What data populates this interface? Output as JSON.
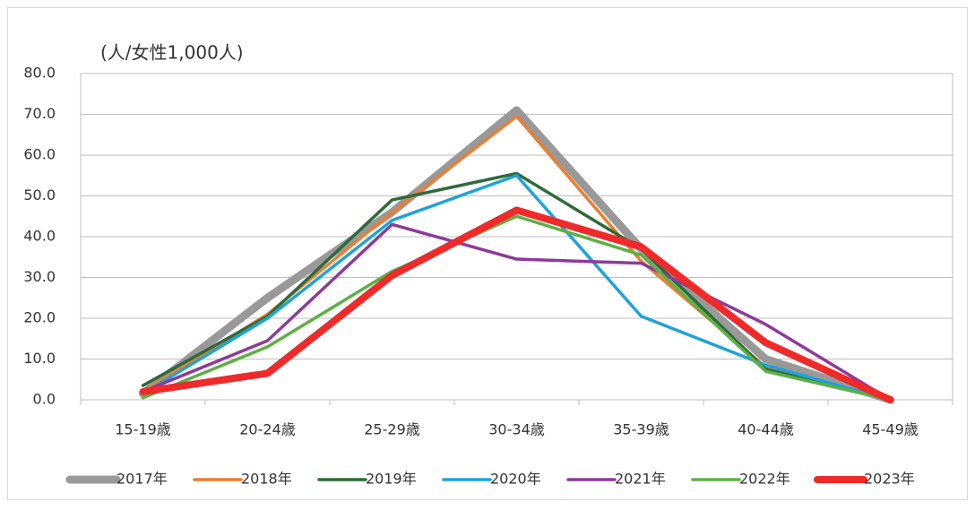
{
  "chart_data": {
    "type": "line",
    "y_axis_label": "(人/女性1,000人)",
    "categories": [
      "15-19歳",
      "20-24歳",
      "25-29歳",
      "30-34歳",
      "35-39歳",
      "40-44歳",
      "45-49歳"
    ],
    "series": [
      {
        "name": "2017年",
        "color": "#999999",
        "line_width": 9,
        "values": [
          1.5,
          25,
          46,
          71,
          37,
          10,
          0
        ]
      },
      {
        "name": "2018年",
        "color": "#ed7d31",
        "line_width": 3.5,
        "values": [
          2,
          21,
          46,
          69.5,
          34,
          8,
          0
        ]
      },
      {
        "name": "2019年",
        "color": "#2e6b3a",
        "line_width": 3.5,
        "values": [
          3.5,
          20.5,
          49,
          55.5,
          37,
          7.5,
          0
        ]
      },
      {
        "name": "2020年",
        "color": "#1fa3d8",
        "line_width": 3.5,
        "values": [
          1.5,
          20,
          44,
          55,
          20.5,
          8.5,
          0
        ]
      },
      {
        "name": "2021年",
        "color": "#8e3a9a",
        "line_width": 3.5,
        "values": [
          2,
          14.5,
          43,
          34.5,
          33.5,
          18.5,
          0
        ]
      },
      {
        "name": "2022年",
        "color": "#5db045",
        "line_width": 3.5,
        "values": [
          0.5,
          13,
          31.5,
          45,
          35.5,
          7,
          0
        ]
      },
      {
        "name": "2023年",
        "color": "#ee2a2a",
        "line_width": 8,
        "values": [
          2,
          6.5,
          30.5,
          46.5,
          37.5,
          14,
          0
        ]
      }
    ],
    "ylim": [
      0,
      80
    ],
    "yticks": [
      {
        "value": 0,
        "label": "0.0"
      },
      {
        "value": 10,
        "label": "10.0"
      },
      {
        "value": 20,
        "label": "20.0"
      },
      {
        "value": 30,
        "label": "30.0"
      },
      {
        "value": 40,
        "label": "40.0"
      },
      {
        "value": 50,
        "label": "50.0"
      },
      {
        "value": 60,
        "label": "60.0"
      },
      {
        "value": 70,
        "label": "70.0"
      },
      {
        "value": 80,
        "label": "80.0"
      }
    ],
    "grid": true,
    "legend": "bottom"
  }
}
